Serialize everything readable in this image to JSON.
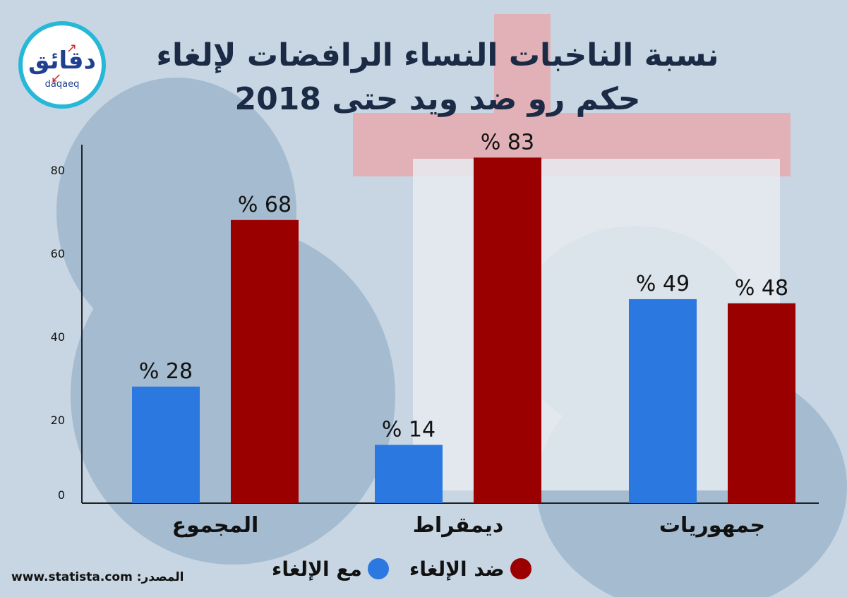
{
  "title": {
    "line1": "نسبة الناخبات النساء الرافضات لإلغاء",
    "line2": "حكم رو ضد ويد حتى 2018"
  },
  "logo": {
    "arabic": "دقائق",
    "latin": "daqaeq"
  },
  "source": {
    "label": "المصدر:",
    "url": "www.statista.com"
  },
  "colors": {
    "with": "#2b78e0",
    "against": "#9b0000",
    "title": "#1b2a45",
    "logo_ring": "#27b7d8"
  },
  "chart_data": {
    "type": "bar",
    "categories": [
      "المجموع",
      "ديمقراط",
      "جمهوريات"
    ],
    "series": [
      {
        "name": "مع الإلغاء",
        "values": [
          28,
          14,
          49
        ],
        "color": "#2b78e0"
      },
      {
        "name": "ضد الإلغاء",
        "values": [
          68,
          83,
          48
        ],
        "color": "#9b0000"
      }
    ],
    "value_suffix": " %",
    "yticks": [
      0,
      20,
      40,
      60,
      80
    ],
    "ylim": [
      0,
      93
    ],
    "grid": false,
    "legend_position": "bottom"
  }
}
